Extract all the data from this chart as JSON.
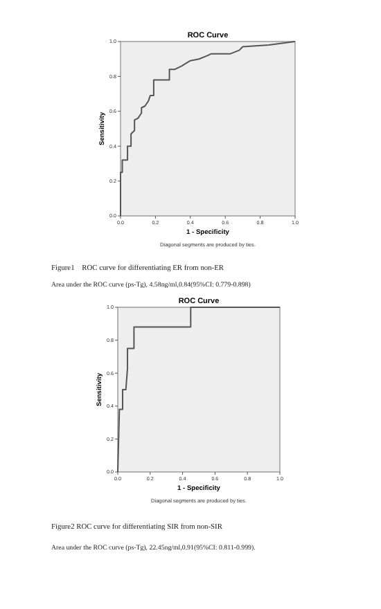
{
  "chart_data": [
    {
      "type": "line",
      "title": "ROC Curve",
      "xlabel": "1 - Specificity",
      "ylabel": "Sensitivity",
      "xlim": [
        0,
        1
      ],
      "ylim": [
        0,
        1
      ],
      "xticks": [
        {
          "value": 0,
          "label": "0.0"
        },
        {
          "value": 0.2,
          "label": "0.2"
        },
        {
          "value": 0.4,
          "label": "0.4"
        },
        {
          "value": 0.6,
          "label": "0.6"
        },
        {
          "value": 0.8,
          "label": "0.8"
        },
        {
          "value": 1,
          "label": "1.0"
        }
      ],
      "yticks": [
        {
          "value": 0,
          "label": "0.0"
        },
        {
          "value": 0.2,
          "label": "0.2"
        },
        {
          "value": 0.4,
          "label": "0.4"
        },
        {
          "value": 0.6,
          "label": "0.6"
        },
        {
          "value": 0.8,
          "label": "0.8"
        },
        {
          "value": 1,
          "label": "1.0"
        }
      ],
      "grid": false,
      "marker": "none",
      "line_style": "solid",
      "series": [
        {
          "color": "#555555",
          "x": [
            0,
            0,
            0.01,
            0.01,
            0.04,
            0.04,
            0.06,
            0.06,
            0.08,
            0.08,
            0.1,
            0.12,
            0.12,
            0.14,
            0.16,
            0.17,
            0.19,
            0.19,
            0.28,
            0.28,
            0.31,
            0.35,
            0.4,
            0.45,
            0.5,
            0.52,
            0.63,
            0.68,
            0.7,
            0.85,
            1
          ],
          "values": [
            0,
            0.25,
            0.25,
            0.32,
            0.32,
            0.4,
            0.4,
            0.47,
            0.49,
            0.55,
            0.56,
            0.59,
            0.62,
            0.63,
            0.66,
            0.69,
            0.69,
            0.78,
            0.78,
            0.84,
            0.84,
            0.86,
            0.89,
            0.9,
            0.92,
            0.93,
            0.93,
            0.95,
            0.97,
            0.98,
            1
          ]
        }
      ],
      "annotations": [
        "Diagonal segments are produced by ties.",
        "Figure1    ROC curve for differentiating ER from non-ER",
        "Area under the ROC curve (ps-Tg), 4.58ng/ml,0.84(95%CI: 0.779-0.898)"
      ]
    },
    {
      "type": "line",
      "title": "ROC Curve",
      "xlabel": "1 - Specificity",
      "ylabel": "Sensitivity",
      "xlim": [
        0,
        1
      ],
      "ylim": [
        0,
        1
      ],
      "xticks": [
        {
          "value": 0,
          "label": "0.0"
        },
        {
          "value": 0.2,
          "label": "0.2"
        },
        {
          "value": 0.4,
          "label": "0.4"
        },
        {
          "value": 0.6,
          "label": "0.6"
        },
        {
          "value": 0.8,
          "label": "0.8"
        },
        {
          "value": 1,
          "label": "1.0"
        }
      ],
      "yticks": [
        {
          "value": 0,
          "label": "0.0"
        },
        {
          "value": 0.2,
          "label": "0.2"
        },
        {
          "value": 0.4,
          "label": "0.4"
        },
        {
          "value": 0.6,
          "label": "0.6"
        },
        {
          "value": 0.8,
          "label": "0.8"
        },
        {
          "value": 1,
          "label": "1.0"
        }
      ],
      "grid": false,
      "marker": "none",
      "line_style": "solid",
      "series": [
        {
          "color": "#555555",
          "x": [
            0,
            0.01,
            0.03,
            0.03,
            0.05,
            0.06,
            0.06,
            0.1,
            0.1,
            0.45,
            0.45,
            1
          ],
          "values": [
            0,
            0.38,
            0.38,
            0.5,
            0.5,
            0.63,
            0.75,
            0.75,
            0.88,
            0.88,
            1,
            1
          ]
        }
      ],
      "annotations": [
        "Diagonal segments are produced by ties.",
        "Figure2 ROC curve for differentiating SIR from non-SIR",
        "Area under the ROC curve (ps-Tg), 22.45ng/ml,0.91(95%CI: 0.811-0.999)."
      ]
    }
  ]
}
